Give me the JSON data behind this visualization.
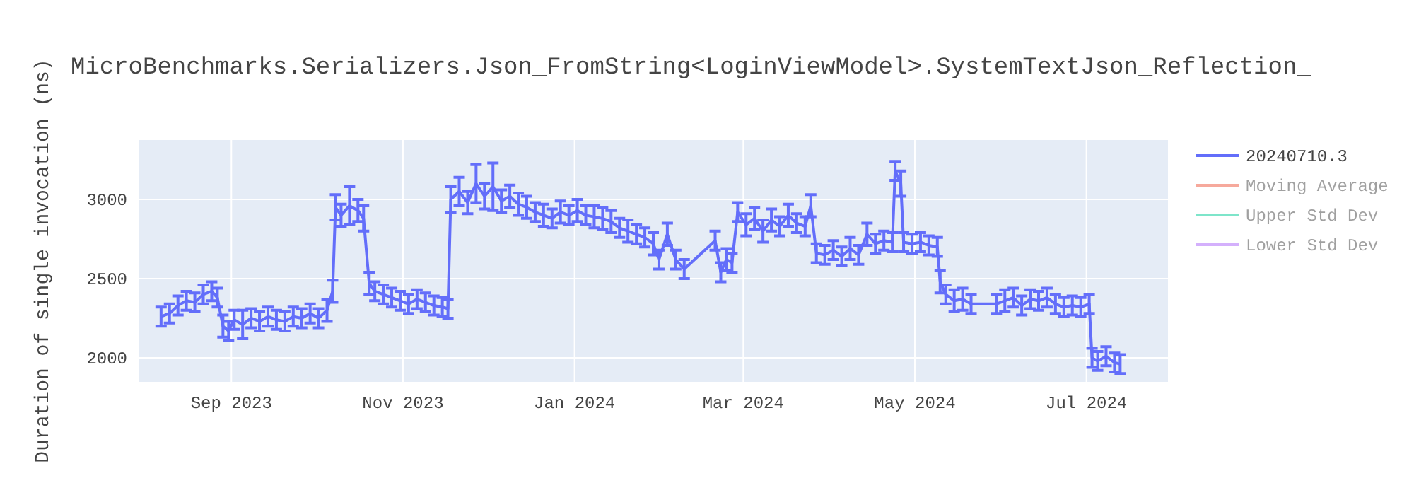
{
  "chart_data": {
    "type": "line",
    "title": "MicroBenchmarks.Serializers.Json_FromString<LoginViewModel>.SystemTextJson_Reflection_",
    "ylabel": "Duration of single invocation (ns)",
    "x": [
      "2023-08-07",
      "2023-08-10",
      "2023-08-13",
      "2023-08-16",
      "2023-08-19",
      "2023-08-22",
      "2023-08-25",
      "2023-08-27",
      "2023-08-29",
      "2023-08-31",
      "2023-09-02",
      "2023-09-05",
      "2023-09-08",
      "2023-09-11",
      "2023-09-14",
      "2023-09-17",
      "2023-09-20",
      "2023-09-23",
      "2023-09-26",
      "2023-09-29",
      "2023-10-02",
      "2023-10-05",
      "2023-10-07",
      "2023-10-08",
      "2023-10-10",
      "2023-10-13",
      "2023-10-16",
      "2023-10-18",
      "2023-10-20",
      "2023-10-22",
      "2023-10-25",
      "2023-10-28",
      "2023-10-31",
      "2023-11-03",
      "2023-11-06",
      "2023-11-09",
      "2023-11-12",
      "2023-11-15",
      "2023-11-17",
      "2023-11-18",
      "2023-11-21",
      "2023-11-24",
      "2023-11-27",
      "2023-11-30",
      "2023-12-03",
      "2023-12-06",
      "2023-12-09",
      "2023-12-12",
      "2023-12-15",
      "2023-12-18",
      "2023-12-21",
      "2023-12-24",
      "2023-12-27",
      "2023-12-30",
      "2024-01-02",
      "2024-01-05",
      "2024-01-08",
      "2024-01-11",
      "2024-01-14",
      "2024-01-17",
      "2024-01-20",
      "2024-01-23",
      "2024-01-26",
      "2024-01-29",
      "2024-01-31",
      "2024-02-03",
      "2024-02-06",
      "2024-02-09",
      "2024-02-20",
      "2024-02-22",
      "2024-02-24",
      "2024-02-26",
      "2024-02-28",
      "2024-03-02",
      "2024-03-05",
      "2024-03-08",
      "2024-03-11",
      "2024-03-14",
      "2024-03-17",
      "2024-03-20",
      "2024-03-23",
      "2024-03-25",
      "2024-03-27",
      "2024-03-30",
      "2024-04-02",
      "2024-04-05",
      "2024-04-08",
      "2024-04-11",
      "2024-04-14",
      "2024-04-17",
      "2024-04-20",
      "2024-04-23",
      "2024-04-24",
      "2024-04-26",
      "2024-04-27",
      "2024-04-30",
      "2024-05-03",
      "2024-05-06",
      "2024-05-09",
      "2024-05-10",
      "2024-05-12",
      "2024-05-15",
      "2024-05-18",
      "2024-05-21",
      "2024-05-30",
      "2024-06-02",
      "2024-06-05",
      "2024-06-08",
      "2024-06-11",
      "2024-06-14",
      "2024-06-17",
      "2024-06-20",
      "2024-06-23",
      "2024-06-26",
      "2024-06-29",
      "2024-07-02",
      "2024-07-03",
      "2024-07-05",
      "2024-07-08",
      "2024-07-11",
      "2024-07-13"
    ],
    "series": [
      {
        "name": "20240710.3",
        "color": "#636efa",
        "values": [
          2260,
          2280,
          2330,
          2360,
          2350,
          2400,
          2420,
          2380,
          2200,
          2170,
          2240,
          2210,
          2250,
          2230,
          2260,
          2240,
          2230,
          2260,
          2250,
          2280,
          2250,
          2300,
          2420,
          2950,
          2900,
          2960,
          2930,
          2880,
          2470,
          2420,
          2400,
          2380,
          2360,
          2340,
          2370,
          2350,
          2330,
          2320,
          2310,
          3000,
          3050,
          2980,
          3100,
          3020,
          3080,
          2990,
          3020,
          2970,
          2950,
          2920,
          2900,
          2880,
          2920,
          2900,
          2930,
          2900,
          2890,
          2880,
          2860,
          2820,
          2800,
          2780,
          2760,
          2720,
          2620,
          2780,
          2620,
          2560,
          2740,
          2540,
          2620,
          2600,
          2920,
          2840,
          2880,
          2800,
          2870,
          2830,
          2900,
          2850,
          2830,
          2960,
          2660,
          2650,
          2680,
          2640,
          2690,
          2650,
          2780,
          2720,
          2740,
          2730,
          3180,
          3100,
          2730,
          2720,
          2730,
          2710,
          2700,
          2480,
          2400,
          2360,
          2370,
          2340,
          2340,
          2360,
          2380,
          2330,
          2370,
          2360,
          2380,
          2340,
          2320,
          2330,
          2320,
          2340,
          2000,
          1980,
          2010,
          1970,
          1960
        ],
        "errors": [
          60,
          60,
          60,
          60,
          60,
          60,
          60,
          60,
          70,
          60,
          60,
          90,
          60,
          60,
          60,
          60,
          60,
          60,
          60,
          60,
          60,
          70,
          70,
          80,
          70,
          120,
          70,
          80,
          70,
          60,
          60,
          60,
          60,
          60,
          60,
          60,
          60,
          60,
          60,
          80,
          90,
          70,
          120,
          80,
          150,
          70,
          70,
          70,
          70,
          60,
          70,
          60,
          70,
          60,
          70,
          60,
          70,
          70,
          70,
          60,
          70,
          60,
          60,
          70,
          60,
          70,
          60,
          60,
          60,
          60,
          70,
          60,
          60,
          70,
          70,
          70,
          70,
          60,
          70,
          60,
          60,
          70,
          60,
          60,
          60,
          60,
          70,
          60,
          70,
          60,
          60,
          60,
          60,
          80,
          60,
          60,
          60,
          60,
          60,
          70,
          60,
          70,
          70,
          60,
          60,
          70,
          60,
          60,
          60,
          60,
          60,
          60,
          60,
          60,
          60,
          60,
          60,
          60,
          60,
          60,
          60
        ]
      },
      {
        "name": "Moving Average",
        "color": "#ef553b",
        "values": [
          null,
          null,
          null,
          null,
          null,
          null,
          null,
          null,
          null,
          null,
          null,
          null,
          null,
          null,
          null,
          null,
          null,
          null,
          null,
          null,
          null,
          null,
          null,
          null,
          null,
          null,
          null,
          null,
          null,
          null,
          null,
          null,
          null,
          null,
          null,
          null,
          null,
          null,
          null,
          null,
          null,
          null,
          null,
          null,
          null,
          null,
          null,
          null,
          null,
          null,
          null,
          null,
          null,
          null,
          null,
          null,
          null,
          null,
          null,
          null,
          null,
          null,
          null,
          null,
          null,
          null,
          null,
          null,
          null,
          null,
          null,
          null,
          null,
          null,
          null,
          null,
          null,
          null,
          null,
          null,
          null,
          null,
          null,
          null,
          null,
          null,
          null,
          null,
          null,
          null,
          null,
          null,
          null,
          null,
          null,
          null,
          null,
          null,
          null,
          null,
          null,
          null,
          null,
          null,
          null,
          null,
          null,
          null,
          null,
          null,
          null,
          null,
          null,
          null,
          null,
          null,
          null,
          null,
          null,
          null,
          null
        ]
      },
      {
        "name": "Upper Std Dev",
        "color": "#00cc96",
        "values": [
          null,
          null,
          null,
          null,
          null,
          null,
          null,
          null,
          null,
          null,
          null,
          null,
          null,
          null,
          null,
          null,
          null,
          null,
          null,
          null,
          null,
          null,
          null,
          null,
          null,
          null,
          null,
          null,
          null,
          null,
          null,
          null,
          null,
          null,
          null,
          null,
          null,
          null,
          null,
          null,
          null,
          null,
          null,
          null,
          null,
          null,
          null,
          null,
          null,
          null,
          null,
          null,
          null,
          null,
          null,
          null,
          null,
          null,
          null,
          null,
          null,
          null,
          null,
          null,
          null,
          null,
          null,
          null,
          null,
          null,
          null,
          null,
          null,
          null,
          null,
          null,
          null,
          null,
          null,
          null,
          null,
          null,
          null,
          null,
          null,
          null,
          null,
          null,
          null,
          null,
          null,
          null,
          null,
          null,
          null,
          null,
          null,
          null,
          null,
          null,
          null,
          null,
          null,
          null,
          null,
          null,
          null,
          null,
          null,
          null,
          null,
          null,
          null,
          null,
          null,
          null,
          null,
          null,
          null,
          null,
          null
        ]
      },
      {
        "name": "Lower Std Dev",
        "color": "#ab63fa",
        "values": [
          null,
          null,
          null,
          null,
          null,
          null,
          null,
          null,
          null,
          null,
          null,
          null,
          null,
          null,
          null,
          null,
          null,
          null,
          null,
          null,
          null,
          null,
          null,
          null,
          null,
          null,
          null,
          null,
          null,
          null,
          null,
          null,
          null,
          null,
          null,
          null,
          null,
          null,
          null,
          null,
          null,
          null,
          null,
          null,
          null,
          null,
          null,
          null,
          null,
          null,
          null,
          null,
          null,
          null,
          null,
          null,
          null,
          null,
          null,
          null,
          null,
          null,
          null,
          null,
          null,
          null,
          null,
          null,
          null,
          null,
          null,
          null,
          null,
          null,
          null,
          null,
          null,
          null,
          null,
          null,
          null,
          null,
          null,
          null,
          null,
          null,
          null,
          null,
          null,
          null,
          null,
          null,
          null,
          null,
          null,
          null,
          null,
          null,
          null,
          null,
          null,
          null,
          null,
          null,
          null,
          null,
          null,
          null,
          null,
          null,
          null,
          null,
          null,
          null,
          null,
          null,
          null,
          null,
          null,
          null,
          null
        ]
      }
    ],
    "xlim": [
      "2023-07-30",
      "2024-07-30"
    ],
    "xticks": [
      {
        "value": "2023-09-01",
        "label": "Sep 2023"
      },
      {
        "value": "2023-11-01",
        "label": "Nov 2023"
      },
      {
        "value": "2024-01-01",
        "label": "Jan 2024"
      },
      {
        "value": "2024-03-01",
        "label": "Mar 2024"
      },
      {
        "value": "2024-05-01",
        "label": "May 2024"
      },
      {
        "value": "2024-07-01",
        "label": "Jul 2024"
      }
    ],
    "ylim": [
      1848,
      3375
    ],
    "yticks": [
      2000,
      2500,
      3000
    ],
    "grid": true,
    "legend": "right",
    "line_style": "solid"
  }
}
